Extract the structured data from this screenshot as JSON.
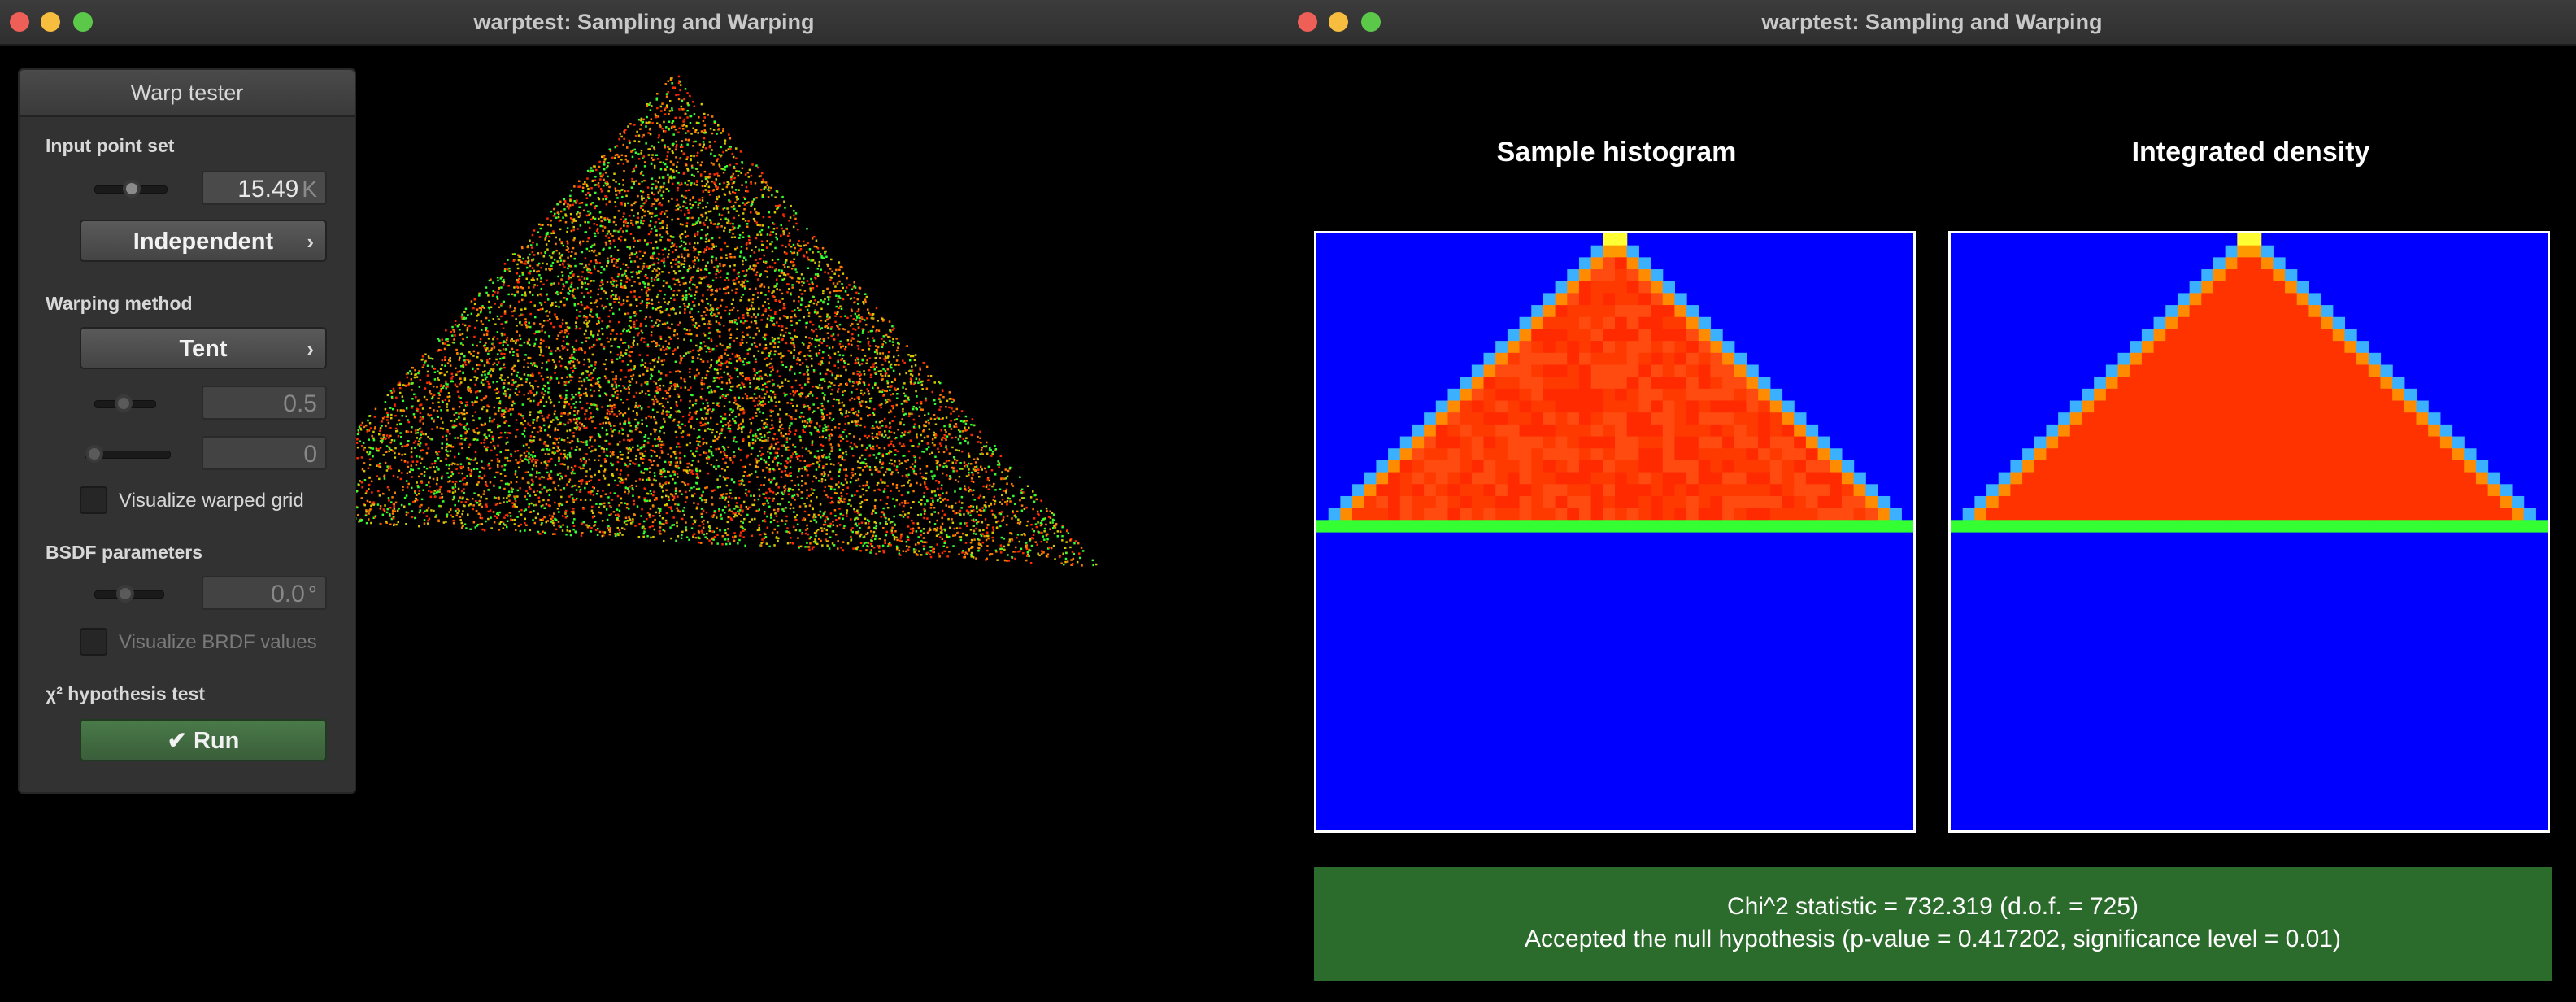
{
  "windows": {
    "left": {
      "title": "warptest: Sampling and Warping"
    },
    "right": {
      "title": "warptest: Sampling and Warping"
    }
  },
  "panel": {
    "title": "Warp tester",
    "input_point_set": {
      "label": "Input point set",
      "count": "15.49",
      "unit": "K",
      "mode": "Independent"
    },
    "warping_method": {
      "label": "Warping method",
      "method": "Tent",
      "param1": "0.5",
      "param2": "0",
      "visualize_grid_label": "Visualize warped grid"
    },
    "bsdf_parameters": {
      "label": "BSDF parameters",
      "value": "0.0",
      "unit": "°",
      "visualize_brdf_label": "Visualize BRDF values"
    },
    "hypothesis_test": {
      "label": "χ² hypothesis test",
      "run_label": "Run"
    }
  },
  "histograms": {
    "sample_title": "Sample histogram",
    "density_title": "Integrated density"
  },
  "result": {
    "line1": "Chi^2 statistic = 732.319 (d.o.f. = 725)",
    "line2": "Accepted the null hypothesis (p-value = 0.417202, significance level = 0.01)"
  },
  "colors": {
    "accepted_bg": "#2b6b2b",
    "histogram_empty": "#0000ff",
    "histogram_filled": "#ff3300",
    "point_red": "#ff2a00",
    "point_green": "#33ff33"
  }
}
